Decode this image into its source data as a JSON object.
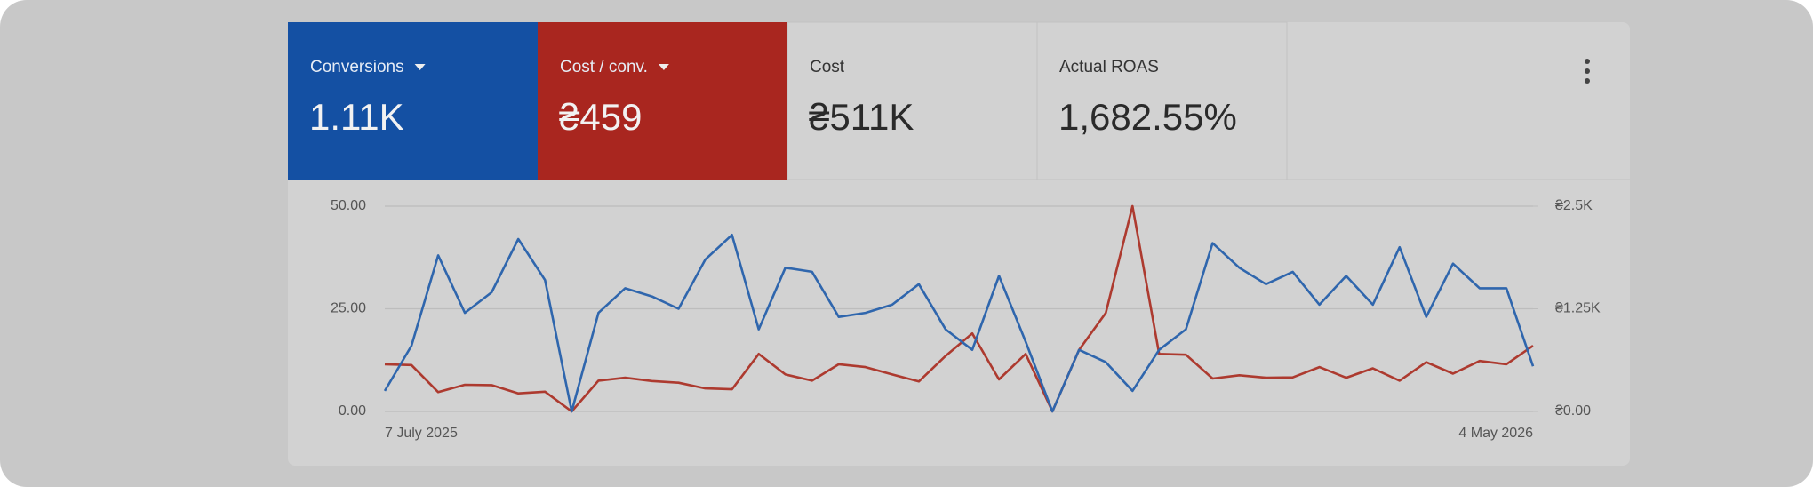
{
  "metrics": [
    {
      "label": "Conversions",
      "value": "1.11K",
      "color": "#1450a3"
    },
    {
      "label": "Cost / conv.",
      "value": "₴459",
      "color": "#a9261f"
    },
    {
      "label": "Cost",
      "value": "₴511K"
    },
    {
      "label": "Actual ROAS",
      "value": "1,682.55%"
    }
  ],
  "chart_data": {
    "type": "line",
    "categories": [
      "7 July 2025",
      null,
      null,
      null,
      null,
      null,
      null,
      null,
      null,
      null,
      null,
      null,
      null,
      null,
      null,
      null,
      null,
      null,
      null,
      null,
      null,
      null,
      null,
      null,
      null,
      null,
      null,
      null,
      null,
      null,
      null,
      null,
      null,
      null,
      null,
      null,
      null,
      null,
      null,
      null,
      null,
      null,
      null,
      "4 May 2026"
    ],
    "series": [
      {
        "color": "#2f66ad",
        "values": [
          5,
          16,
          38,
          24,
          29,
          42,
          32,
          0,
          24,
          30,
          28,
          25,
          37,
          43,
          20,
          35,
          34,
          23,
          24,
          26,
          31,
          20,
          15,
          33,
          17,
          0,
          15,
          12,
          5,
          15,
          20,
          41,
          35,
          31,
          34,
          26,
          33,
          26,
          40,
          23,
          36,
          30,
          30,
          11
        ]
      },
      {
        "color": "#ad3a2f",
        "axis": "y2",
        "values": [
          575,
          565,
          235,
          325,
          320,
          220,
          240,
          0,
          375,
          410,
          370,
          350,
          280,
          270,
          700,
          450,
          375,
          575,
          540,
          450,
          365,
          675,
          950,
          390,
          700,
          0,
          750,
          1200,
          2500,
          700,
          690,
          400,
          440,
          410,
          415,
          540,
          410,
          525,
          375,
          600,
          460,
          615,
          575,
          800
        ]
      }
    ],
    "ylim": [
      0,
      50
    ],
    "yticks": [
      {
        "value": 0,
        "label": "0.00"
      },
      {
        "value": 25,
        "label": "25.00"
      },
      {
        "value": 50,
        "label": "50.00"
      }
    ],
    "y2lim": [
      0,
      2500
    ],
    "y2ticks": [
      {
        "value": 0,
        "label": "₴0.00"
      },
      {
        "value": 1250,
        "label": "₴1.25K"
      },
      {
        "value": 2500,
        "label": "₴2.5K"
      }
    ],
    "grid": true
  }
}
